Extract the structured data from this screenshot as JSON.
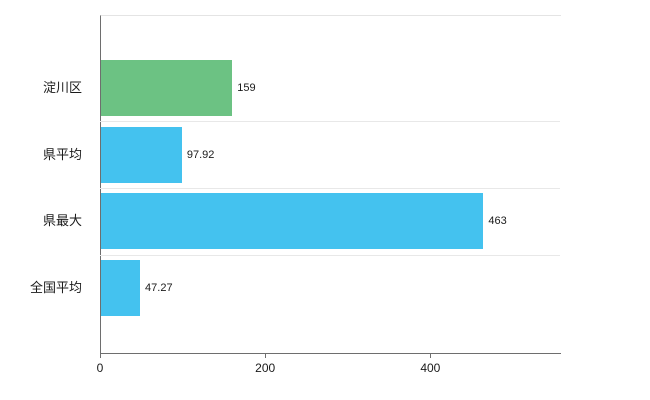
{
  "chart_data": {
    "type": "bar",
    "orientation": "horizontal",
    "title": "",
    "xlabel": "",
    "ylabel": "",
    "categories": [
      "淀川区",
      "県平均",
      "県最大",
      "全国平均"
    ],
    "values": [
      159,
      97.92,
      463,
      47.27
    ],
    "value_labels": [
      "159",
      "97.92",
      "463",
      "47.27"
    ],
    "bar_colors": [
      "#6cc283",
      "#44c2ef",
      "#44c2ef",
      "#44c2ef"
    ],
    "xlim": [
      0,
      557
    ],
    "x_ticks": [
      0,
      200,
      400
    ],
    "x_tick_labels": [
      "0",
      "200",
      "400"
    ],
    "grid": true,
    "legend": false
  },
  "colors": {
    "background": "#ffffff",
    "axis": "#6e6e6e",
    "gridline": "#e8e8e8",
    "green_bar": "#6cc283",
    "blue_bar": "#44c2ef",
    "text": "#1a1a1a"
  }
}
